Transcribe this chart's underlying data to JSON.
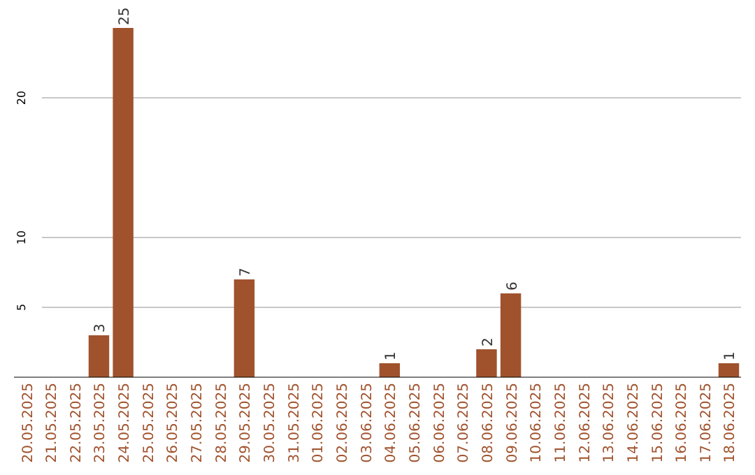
{
  "chart_data": {
    "type": "bar",
    "categories": [
      "20.05.2025",
      "21.05.2025",
      "22.05.2025",
      "23.05.2025",
      "24.05.2025",
      "25.05.2025",
      "26.05.2025",
      "27.05.2025",
      "28.05.2025",
      "29.05.2025",
      "30.05.2025",
      "31.05.2025",
      "01.06.2025",
      "02.06.2025",
      "03.06.2025",
      "04.06.2025",
      "05.06.2025",
      "06.06.2025",
      "07.06.2025",
      "08.06.2025",
      "09.06.2025",
      "10.06.2025",
      "11.06.2025",
      "12.06.2025",
      "13.06.2025",
      "14.06.2025",
      "15.06.2025",
      "16.06.2025",
      "17.06.2025",
      "18.06.2025"
    ],
    "values": [
      0,
      0,
      0,
      3,
      25,
      0,
      0,
      0,
      0,
      7,
      0,
      0,
      0,
      0,
      0,
      1,
      0,
      0,
      0,
      2,
      6,
      0,
      0,
      0,
      0,
      0,
      0,
      0,
      0,
      1
    ],
    "value_labels": [
      null,
      null,
      null,
      "3",
      "25",
      null,
      null,
      null,
      null,
      "7",
      null,
      null,
      null,
      null,
      null,
      "1",
      null,
      null,
      null,
      "2",
      "6",
      null,
      null,
      null,
      null,
      null,
      null,
      null,
      null,
      "1"
    ],
    "color": "#a0522d",
    "ylim": [
      0,
      25
    ],
    "yticks": [
      5,
      10,
      20
    ],
    "grid": "y"
  }
}
